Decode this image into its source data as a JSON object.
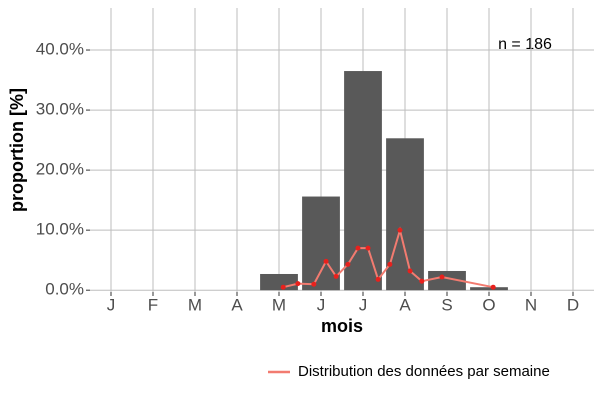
{
  "chart_data": {
    "type": "bar",
    "categories": [
      "J",
      "F",
      "M",
      "A",
      "M",
      "J",
      "J",
      "A",
      "S",
      "O",
      "N",
      "D"
    ],
    "values": [
      0,
      0,
      0,
      0,
      2.7,
      15.6,
      36.5,
      25.3,
      3.2,
      0.5,
      0,
      0
    ],
    "color": "#595959",
    "xlim": [
      0.5,
      12.5
    ],
    "ylim": [
      -0.3,
      47
    ],
    "yticks": [
      {
        "value": 0,
        "label": "0.0%"
      },
      {
        "value": 10,
        "label": "10.0%"
      },
      {
        "value": 20,
        "label": "20.0%"
      },
      {
        "value": 30,
        "label": "30.0%"
      },
      {
        "value": 40,
        "label": "40.0%"
      }
    ],
    "grid": true,
    "xlabel": "mois",
    "ylabel": "proportion [%]",
    "annotation": "n = 186",
    "legend_position": "bottom",
    "overlay": {
      "type": "line",
      "name": "Distribution des données par semaine",
      "color": "#f27b70",
      "marker_color": "#e8211d",
      "x": [
        5.1,
        5.45,
        5.83,
        6.12,
        6.36,
        6.64,
        6.88,
        7.12,
        7.36,
        7.64,
        7.88,
        8.12,
        8.4,
        8.88,
        10.1
      ],
      "values": [
        0.5,
        1.1,
        1.0,
        4.8,
        2.3,
        4.3,
        7.0,
        7.0,
        1.8,
        4.3,
        10.0,
        3.2,
        1.5,
        2.2,
        0.5
      ]
    }
  }
}
